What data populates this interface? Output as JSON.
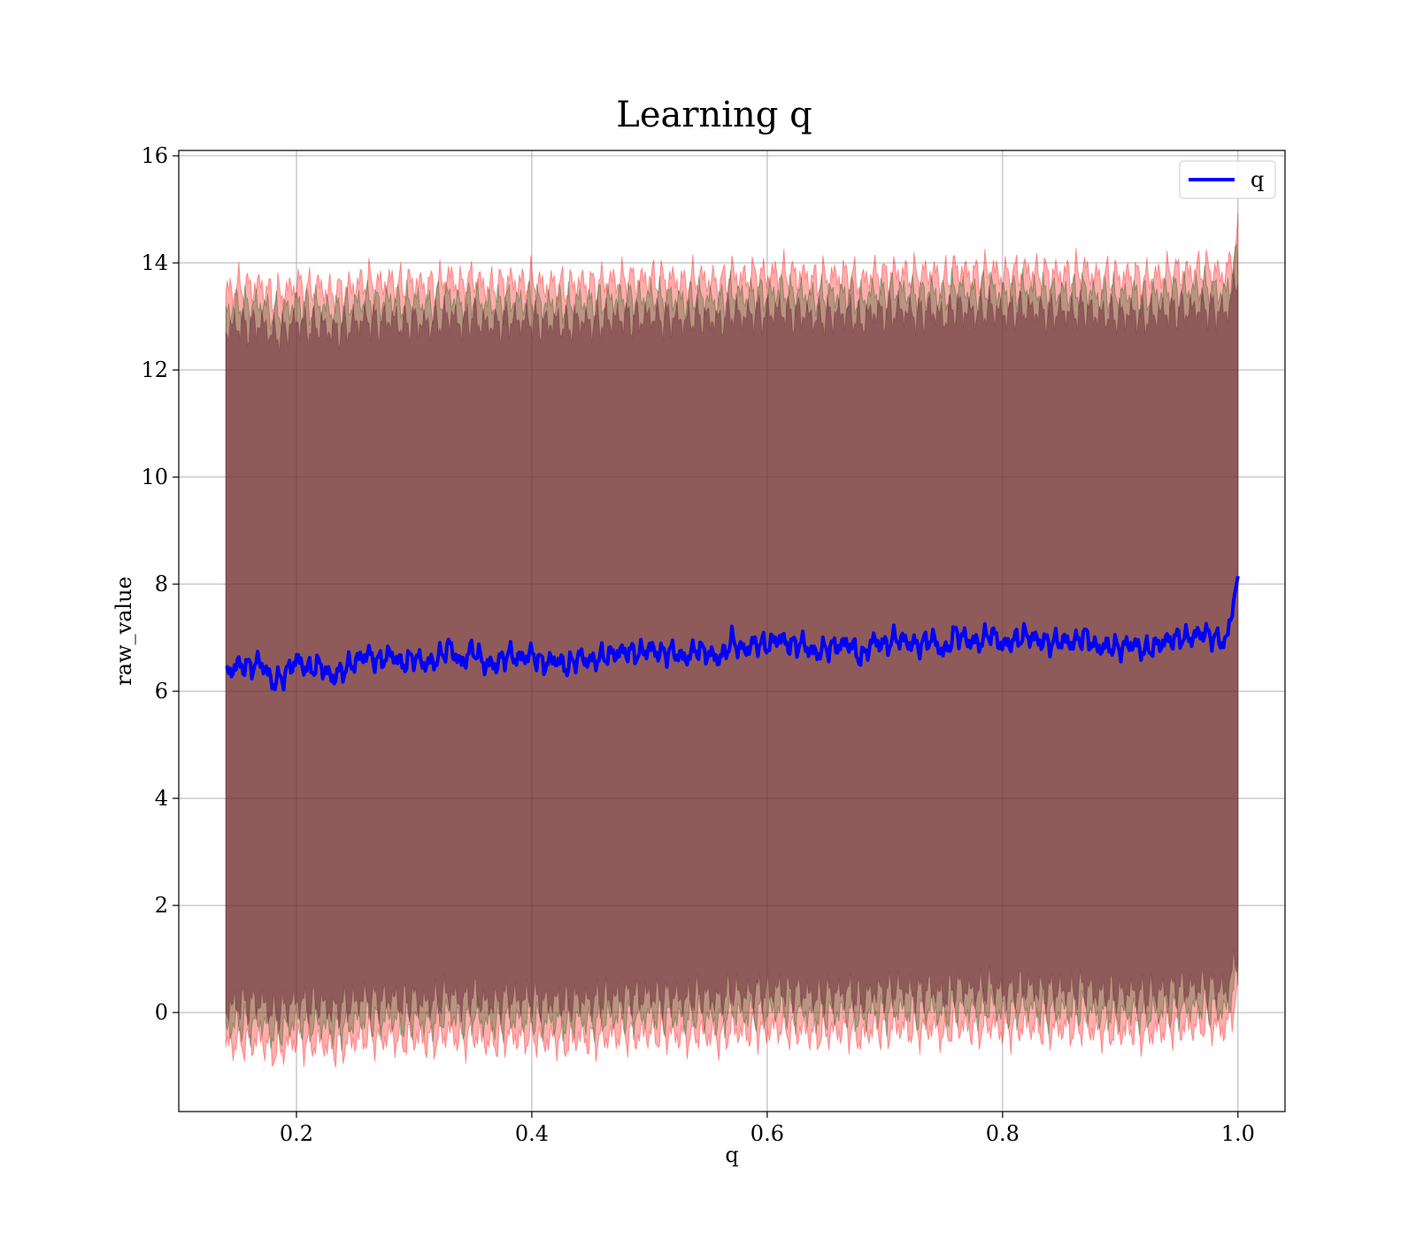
{
  "chart_data": {
    "type": "line",
    "title": "Learning q",
    "xlabel": "q",
    "ylabel": "raw_value",
    "xlim": [
      0.1,
      1.04
    ],
    "ylim": [
      -1.85,
      16.1
    ],
    "xticks": [
      "0.2",
      "0.4",
      "0.6",
      "0.8",
      "1.0"
    ],
    "yticks": [
      "0",
      "2",
      "4",
      "6",
      "8",
      "10",
      "12",
      "14",
      "16"
    ],
    "grid": true,
    "legend_position": "top-right",
    "colors": {
      "line": "#0000ff",
      "outer_band": "#ff0000",
      "inner_band": "#1a5c1a",
      "core_band": "#6b2a3a"
    },
    "series": [
      {
        "name": "q",
        "x": [
          0.14,
          0.15,
          0.16,
          0.17,
          0.18,
          0.19,
          0.2,
          0.21,
          0.22,
          0.23,
          0.24,
          0.25,
          0.26,
          0.27,
          0.28,
          0.29,
          0.3,
          0.31,
          0.32,
          0.33,
          0.34,
          0.35,
          0.36,
          0.37,
          0.38,
          0.39,
          0.4,
          0.41,
          0.42,
          0.43,
          0.44,
          0.45,
          0.46,
          0.47,
          0.48,
          0.49,
          0.5,
          0.51,
          0.52,
          0.53,
          0.54,
          0.55,
          0.56,
          0.57,
          0.58,
          0.59,
          0.6,
          0.61,
          0.62,
          0.63,
          0.64,
          0.65,
          0.66,
          0.67,
          0.68,
          0.69,
          0.7,
          0.71,
          0.72,
          0.73,
          0.74,
          0.75,
          0.76,
          0.77,
          0.78,
          0.79,
          0.8,
          0.81,
          0.82,
          0.83,
          0.84,
          0.85,
          0.86,
          0.87,
          0.88,
          0.89,
          0.9,
          0.91,
          0.92,
          0.93,
          0.94,
          0.95,
          0.96,
          0.97,
          0.98,
          0.99,
          1.0
        ],
        "y": [
          6.3,
          6.5,
          6.45,
          6.55,
          6.15,
          6.3,
          6.6,
          6.4,
          6.5,
          6.25,
          6.4,
          6.55,
          6.7,
          6.55,
          6.7,
          6.5,
          6.65,
          6.5,
          6.6,
          6.85,
          6.5,
          6.8,
          6.5,
          6.5,
          6.7,
          6.6,
          6.7,
          6.5,
          6.6,
          6.45,
          6.65,
          6.55,
          6.65,
          6.7,
          6.75,
          6.7,
          6.8,
          6.7,
          6.75,
          6.6,
          6.8,
          6.7,
          6.6,
          6.95,
          6.75,
          6.9,
          6.85,
          7.0,
          6.85,
          6.9,
          6.7,
          6.8,
          6.85,
          6.9,
          6.6,
          6.95,
          6.85,
          7.0,
          6.9,
          6.85,
          7.0,
          6.7,
          7.1,
          6.95,
          6.9,
          7.1,
          6.85,
          6.95,
          7.05,
          6.95,
          6.9,
          6.95,
          6.9,
          7.05,
          6.8,
          6.85,
          6.8,
          6.9,
          6.75,
          6.85,
          6.95,
          7.0,
          7.0,
          7.1,
          7.0,
          6.9,
          8.15
        ]
      }
    ],
    "bands": [
      {
        "upper": 13.45,
        "lower": -0.65
      },
      {
        "upper": 13.1,
        "lower": -0.3
      },
      {
        "upper": 12.75,
        "lower": 0.05
      }
    ]
  }
}
